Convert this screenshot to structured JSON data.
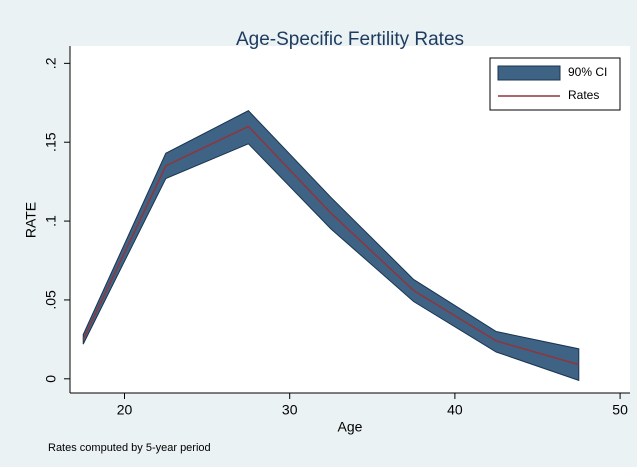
{
  "chart_data": {
    "type": "line",
    "title": "Age-Specific Fertility Rates",
    "x_label": "Age",
    "y_label": "RATE",
    "note": "Rates computed by 5-year period",
    "x": [
      17.5,
      22.5,
      27.5,
      32.5,
      37.5,
      42.5,
      47.5
    ],
    "series": [
      {
        "name": "90% CI",
        "type": "band",
        "color": "#3e6385",
        "lower": [
          0.022,
          0.127,
          0.149,
          0.095,
          0.049,
          0.017,
          -0.001
        ],
        "upper": [
          0.028,
          0.143,
          0.17,
          0.115,
          0.063,
          0.03,
          0.019
        ]
      },
      {
        "name": "Rates",
        "type": "line",
        "color": "#90353b",
        "values": [
          0.025,
          0.135,
          0.16,
          0.105,
          0.056,
          0.024,
          0.009
        ]
      }
    ],
    "xlim": [
      16.7,
      50.6
    ],
    "ylim": [
      -0.009,
      0.211
    ],
    "xticks": [
      20,
      30,
      40,
      50
    ],
    "yticks": [
      0,
      {
        "value": 0.05,
        "label": ".05"
      },
      {
        "value": 0.1,
        "label": ".1"
      },
      {
        "value": 0.15,
        "label": ".15"
      },
      {
        "value": 0.2,
        "label": ".2"
      }
    ],
    "grid": false,
    "legend": "top-right"
  }
}
